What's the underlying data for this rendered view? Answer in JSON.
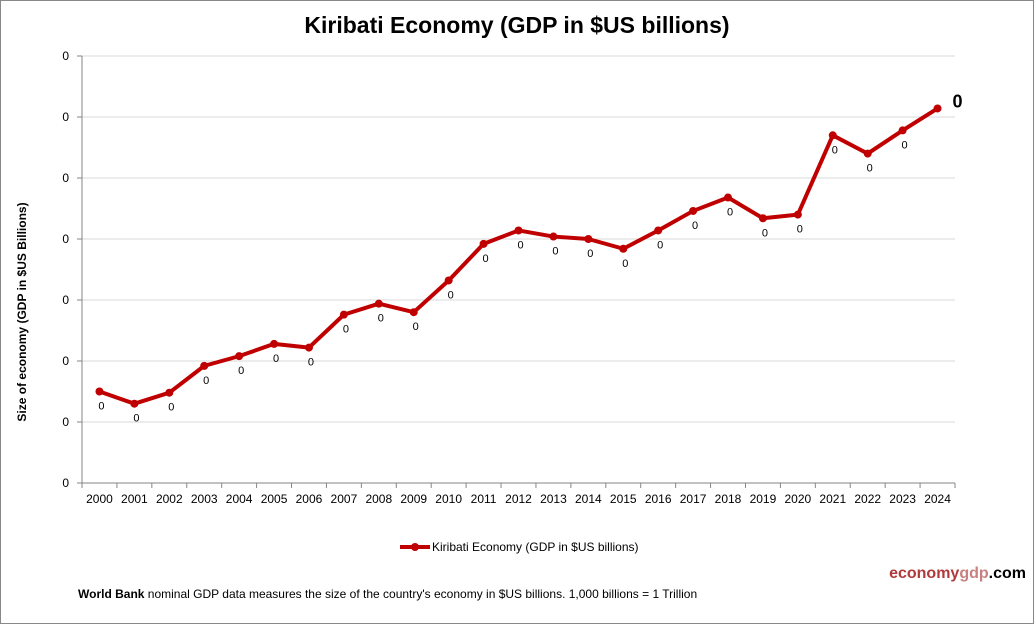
{
  "chart_data": {
    "type": "line",
    "title": "Kiribati Economy (GDP in $US billions)",
    "ylabel": "Size of economy (GDP in $US Billions)",
    "xlabel": "",
    "ylim": [
      0,
      0.35
    ],
    "yticks": [
      0,
      0.05,
      0.1,
      0.15,
      0.2,
      0.25,
      0.3,
      0.35
    ],
    "ytick_labels": [
      "0",
      "0",
      "0",
      "0",
      "0",
      "0",
      "0",
      "0"
    ],
    "grid": true,
    "legend_position": "bottom",
    "categories": [
      "2000",
      "2001",
      "2002",
      "2003",
      "2004",
      "2005",
      "2006",
      "2007",
      "2008",
      "2009",
      "2010",
      "2011",
      "2012",
      "2013",
      "2014",
      "2015",
      "2016",
      "2017",
      "2018",
      "2019",
      "2020",
      "2021",
      "2022",
      "2023",
      "2024"
    ],
    "series": [
      {
        "name": "Kiribati Economy (GDP in $US billions)",
        "color": "#c00000",
        "values": [
          0.075,
          0.065,
          0.074,
          0.096,
          0.104,
          0.114,
          0.111,
          0.138,
          0.147,
          0.14,
          0.166,
          0.196,
          0.207,
          0.202,
          0.2,
          0.192,
          0.207,
          0.223,
          0.234,
          0.217,
          0.22,
          0.285,
          0.27,
          0.289,
          0.307
        ],
        "data_labels": [
          "0",
          "0",
          "0",
          "0",
          "0",
          "0",
          "0",
          "0",
          "0",
          "0",
          "0",
          "0",
          "0",
          "0",
          "0",
          "0",
          "0",
          "0",
          "0",
          "0",
          "0",
          "0",
          "0",
          "0",
          "0"
        ]
      }
    ]
  },
  "brand": {
    "part1": "economy",
    "part2": "gdp",
    "part3": ".com"
  },
  "note": {
    "bold": "World Bank",
    "text": " nominal GDP data  measures the size of the country's economy in $US billions. 1,000 billions = 1 Trillion"
  }
}
